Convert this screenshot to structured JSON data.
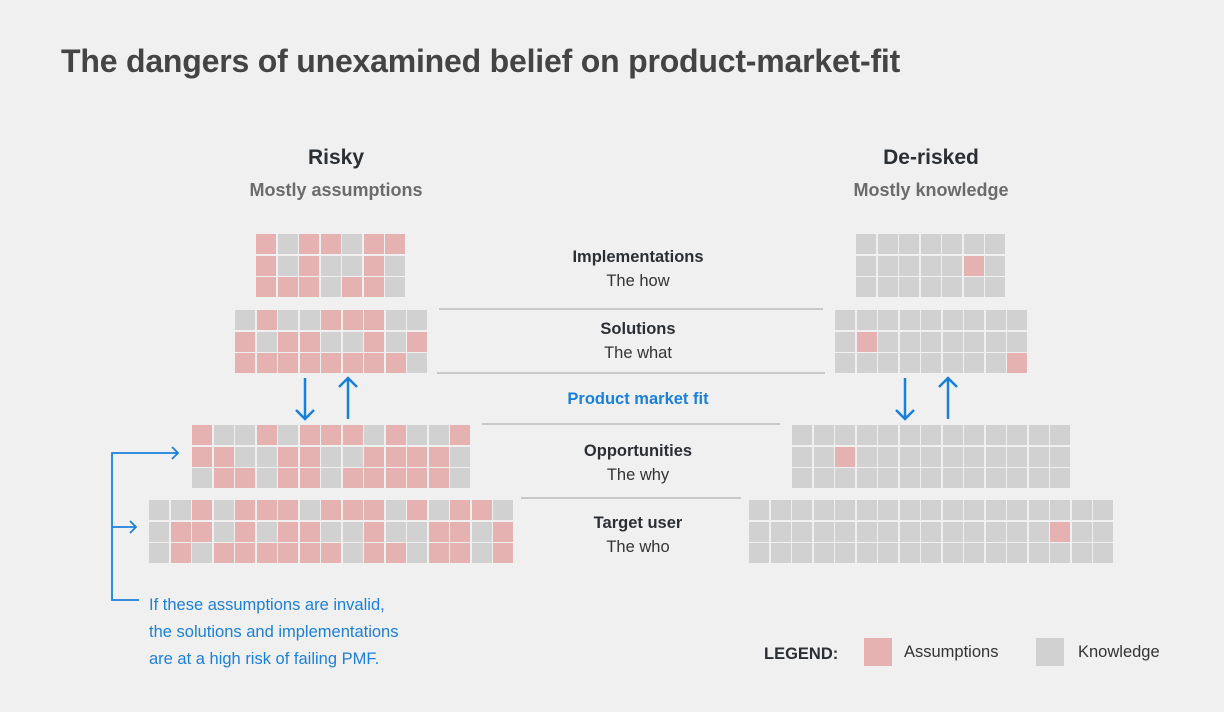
{
  "title": "The dangers of unexamined belief on product-market-fit",
  "colors": {
    "assumption": "#e6b1b1",
    "knowledge": "#d1d1d1",
    "accent": "#1b7fdc"
  },
  "risky": {
    "title": "Risky",
    "subtitle": "Mostly assumptions",
    "grids": [
      [
        "AKAAKAA",
        "AKAKKAK",
        "AAAKAAK"
      ],
      [
        "KAKKAAAKK",
        "AKAAKKAKA",
        "AAAAAAAAK"
      ],
      [
        "AKKAKAAAKAKKA",
        "AAKKAAKKAAAAK",
        "KAAKAAKAAAAAK"
      ],
      [
        "KKAKAAAKAAAKAKAAK",
        "KAAKAKAAKKAKKAAKA",
        "KAKAAAAAAKAAKAAKA"
      ]
    ]
  },
  "derisked": {
    "title": "De-risked",
    "subtitle": "Mostly knowledge",
    "grids": [
      [
        "KKKKKKK",
        "KKKKKAK",
        "KKKKKKK"
      ],
      [
        "KKKKKKKKK",
        "KAKKKKKKK",
        "KKKKKKKKA"
      ],
      [
        "KKKKKKKKKKKKK",
        "KKAKKKKKKKKKK",
        "KKKKKKKKKKKKK"
      ],
      [
        "KKKKKKKKKKKKKKKKK",
        "KKKKKKKKKKKKKKAKK",
        "KKKKKKKKKKKKKKKKK"
      ]
    ]
  },
  "layers": {
    "implementations": {
      "name": "Implementations",
      "desc": "The how"
    },
    "solutions": {
      "name": "Solutions",
      "desc": "The what"
    },
    "pmf": "Product market fit",
    "opportunities": {
      "name": "Opportunities",
      "desc": "The why"
    },
    "target_user": {
      "name": "Target user",
      "desc": "The who"
    }
  },
  "note": [
    "If these assumptions are invalid,",
    "the solutions and implementations",
    "are at a high risk of failing PMF."
  ],
  "legend": {
    "label": "LEGEND:",
    "assumptions": "Assumptions",
    "knowledge": "Knowledge"
  }
}
